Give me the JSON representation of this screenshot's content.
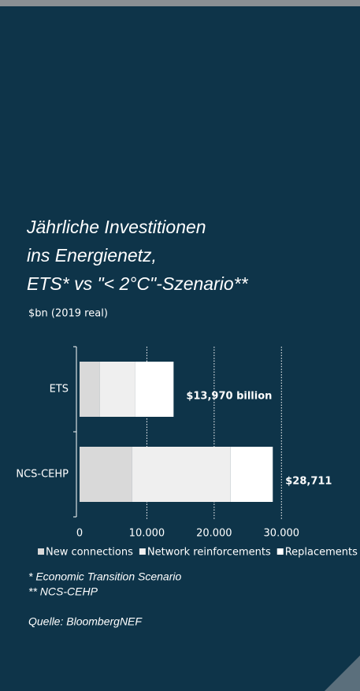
{
  "chart_data": {
    "type": "stacked-bar-horizontal",
    "title_lines": [
      "Jährliche Investitionen",
      "ins Energienetz,",
      "ETS* vs \"< 2°C\"-Szenario**"
    ],
    "axis_label": "$bn (2019 real)",
    "categories": [
      "ETS",
      "NCS-CEHP"
    ],
    "series": [
      {
        "name": "New connections",
        "color": "#d9d9d9",
        "values": [
          3000,
          7800
        ]
      },
      {
        "name": "Network reinforcements",
        "color": "#efefef",
        "values": [
          5300,
          14650
        ]
      },
      {
        "name": "Replacements",
        "color": "#ffffff",
        "values": [
          5670,
          6261
        ]
      }
    ],
    "totals": {
      "values": [
        13970,
        28711
      ],
      "value_labels": [
        "$13,970 billion",
        "$28,711"
      ]
    },
    "xlim": [
      0,
      35000
    ],
    "xticks": [
      0,
      {
        "value": 10000,
        "label": "10.000"
      },
      {
        "value": 20000,
        "label": "20.000"
      },
      {
        "value": 30000,
        "label": "30.000"
      }
    ],
    "grid": true,
    "legend": "bottom",
    "footnotes": [
      "* Economic Transition Scenario",
      "** NCS-CEHP",
      "Quelle: BloombergNEF"
    ]
  }
}
